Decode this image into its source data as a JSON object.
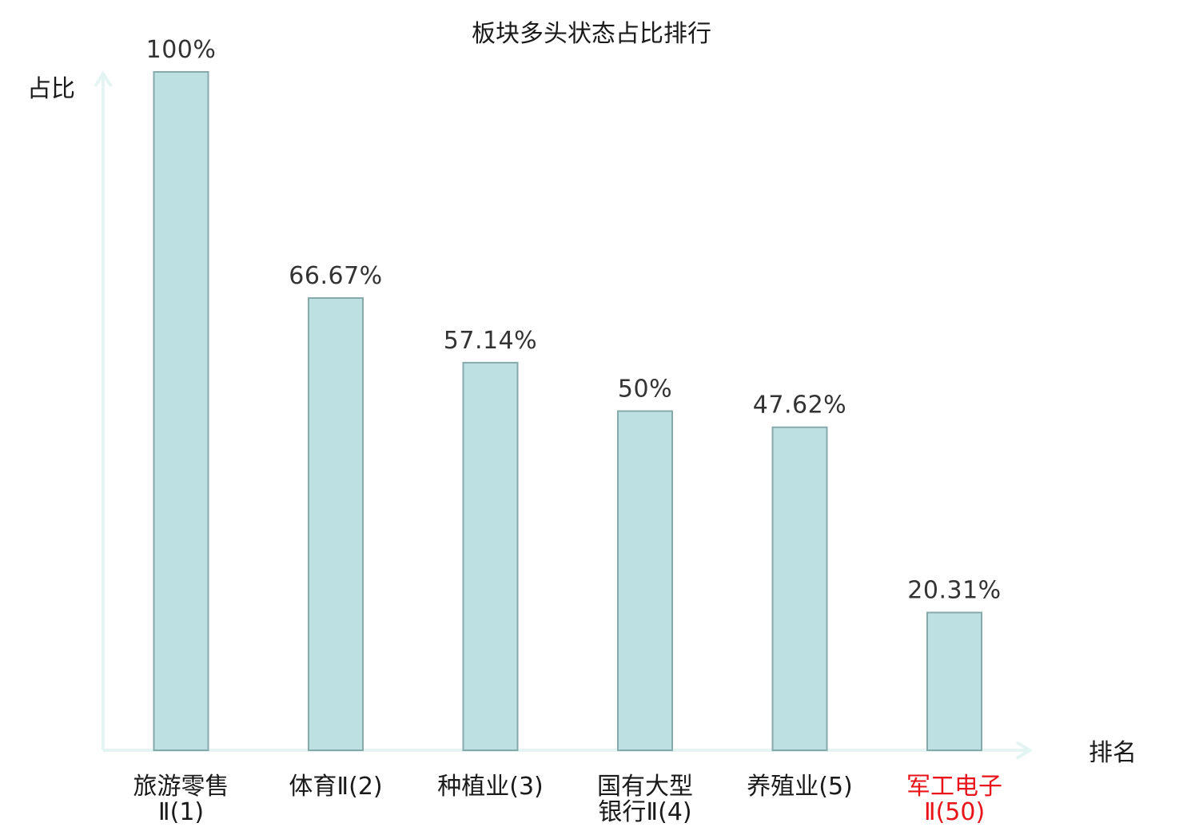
{
  "chart_data": {
    "type": "bar",
    "title": "板块多头状态占比排行",
    "xlabel": "排名",
    "ylabel": "占比",
    "ylim": [
      0,
      100
    ],
    "grid": false,
    "categories": [
      {
        "lines": [
          "旅游零售",
          "Ⅱ(1)"
        ],
        "highlight": false
      },
      {
        "lines": [
          "体育Ⅱ(2)"
        ],
        "highlight": false
      },
      {
        "lines": [
          "种植业(3)"
        ],
        "highlight": false
      },
      {
        "lines": [
          "国有大型",
          "银行Ⅱ(4)"
        ],
        "highlight": false
      },
      {
        "lines": [
          "养殖业(5)"
        ],
        "highlight": false
      },
      {
        "lines": [
          "军工电子",
          "Ⅱ(50)"
        ],
        "highlight": true
      }
    ],
    "values": [
      100,
      66.67,
      57.14,
      50,
      47.62,
      20.31
    ],
    "value_labels": [
      "100%",
      "66.67%",
      "57.14%",
      "50%",
      "47.62%",
      "20.31%"
    ]
  },
  "colors": {
    "bar_fill": "#bde0e2",
    "bar_stroke": "#86a9ab",
    "axis": "#e3f4f3",
    "highlight": "#e8141a"
  }
}
